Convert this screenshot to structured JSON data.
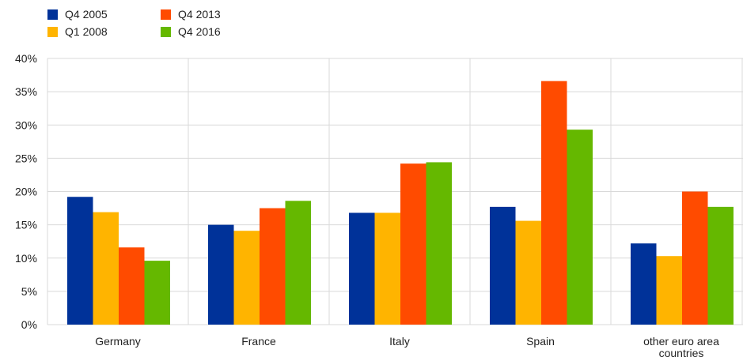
{
  "chart_data": {
    "type": "bar",
    "categories": [
      "Germany",
      "France",
      "Italy",
      "Spain",
      "other euro area countries"
    ],
    "series": [
      {
        "name": "Q4 2005",
        "color": "#003299",
        "values": [
          19.2,
          15.0,
          16.8,
          17.7,
          12.2
        ]
      },
      {
        "name": "Q1 2008",
        "color": "#FFB400",
        "values": [
          16.9,
          14.1,
          16.8,
          15.6,
          10.3
        ]
      },
      {
        "name": "Q4 2013",
        "color": "#FF4B00",
        "values": [
          11.6,
          17.5,
          24.2,
          36.6,
          20.0
        ]
      },
      {
        "name": "Q4 2016",
        "color": "#65B800",
        "values": [
          9.6,
          18.6,
          24.4,
          29.3,
          17.7
        ]
      }
    ],
    "ylim": [
      0,
      40
    ],
    "yticks": [
      0,
      5,
      10,
      15,
      20,
      25,
      30,
      35,
      40
    ],
    "ytick_labels": [
      "0%",
      "5%",
      "10%",
      "15%",
      "20%",
      "25%",
      "30%",
      "35%",
      "40%"
    ],
    "grid": true,
    "legend_position": "top-left",
    "title": "",
    "xlabel": "",
    "ylabel": ""
  }
}
